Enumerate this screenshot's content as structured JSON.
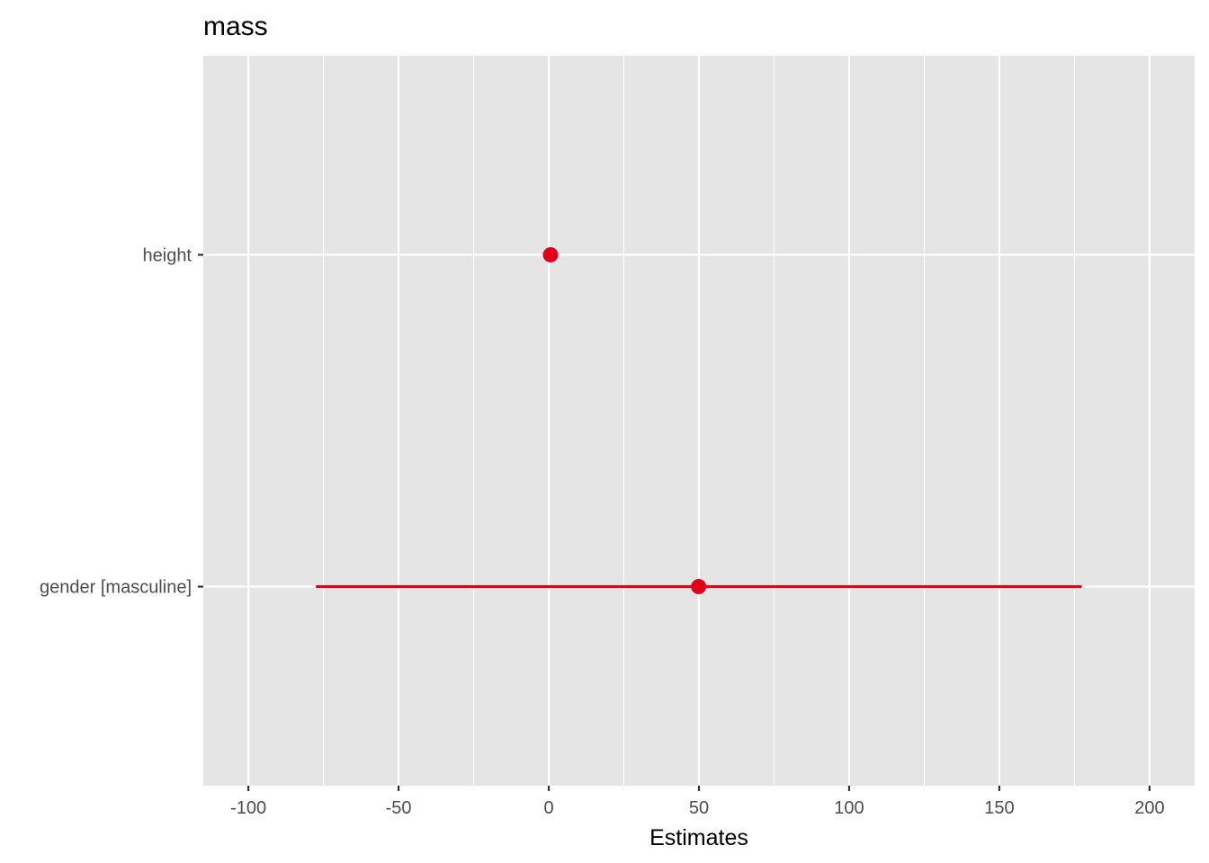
{
  "chart_data": {
    "type": "forest",
    "title": "mass",
    "xlabel": "Estimates",
    "ylabel": "",
    "xlim": [
      -115,
      215
    ],
    "x_major_ticks": [
      -100,
      -50,
      0,
      50,
      100,
      150,
      200
    ],
    "x_tick_labels": [
      "-100",
      "-50",
      "0",
      "50",
      "100",
      "150",
      "200"
    ],
    "grid": true,
    "terms": [
      {
        "label": "height",
        "estimate": 0.6,
        "ci_low": 0.6,
        "ci_high": 0.6
      },
      {
        "label": "gender [masculine]",
        "estimate": 49.9,
        "ci_low": -77.5,
        "ci_high": 177.4
      }
    ],
    "colors": {
      "panel": "#e5e5e5",
      "grid": "#ffffff",
      "point": "#e0001a"
    }
  }
}
